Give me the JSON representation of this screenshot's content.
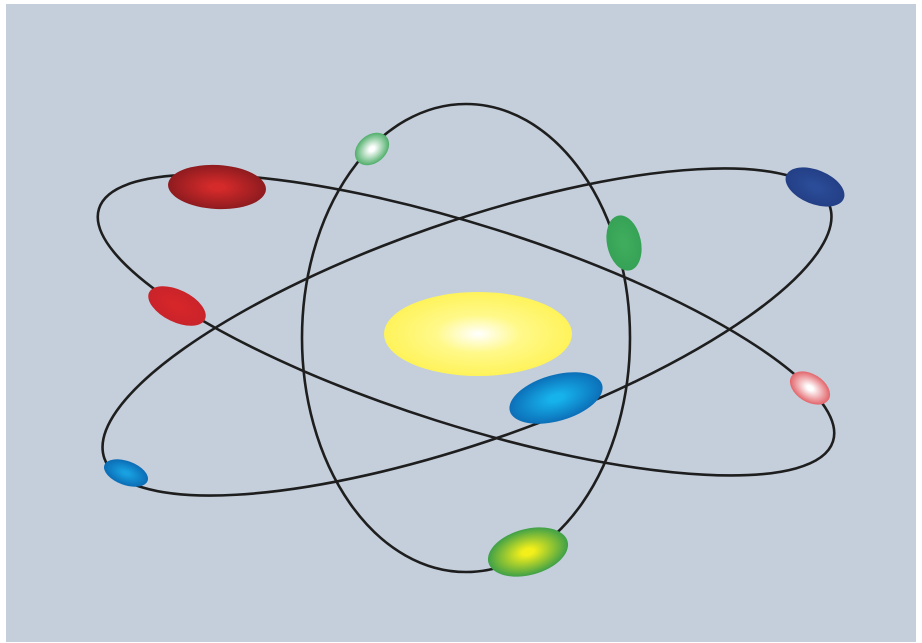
{
  "colors": {
    "background": "#c4cfdb",
    "orbit_stroke": "#1e1e1e",
    "nucleus_center": "#ffffff",
    "nucleus_mid": "#fff98a",
    "nucleus_edge": "#fff35a"
  },
  "diagram": {
    "type": "atom",
    "nucleus": {
      "name": "nucleus"
    },
    "orbits": [
      {
        "name": "orbit-vertical"
      },
      {
        "name": "orbit-rising"
      },
      {
        "name": "orbit-falling"
      }
    ],
    "electrons": [
      {
        "name": "electron-dark-red",
        "inner": "#d42a2a",
        "outer": "#8e1b1f"
      },
      {
        "name": "electron-red",
        "inner": "#d6262a",
        "outer": "#c9232a"
      },
      {
        "name": "electron-pale-green",
        "inner": "#ffffff",
        "outer": "#4fae6a"
      },
      {
        "name": "electron-green",
        "inner": "#3fab5c",
        "outer": "#36a256"
      },
      {
        "name": "electron-navy",
        "inner": "#2b4c98",
        "outer": "#233f86"
      },
      {
        "name": "electron-pink",
        "inner": "#ffffff",
        "outer": "#e2646a"
      },
      {
        "name": "electron-blue-large",
        "inner": "#16b2ec",
        "outer": "#0c6fb8"
      },
      {
        "name": "electron-blue-small",
        "inner": "#18a0e0",
        "outer": "#0b6cb5"
      },
      {
        "name": "electron-lime",
        "inner": "#f2ef1a",
        "outer": "#3fa048"
      }
    ]
  }
}
